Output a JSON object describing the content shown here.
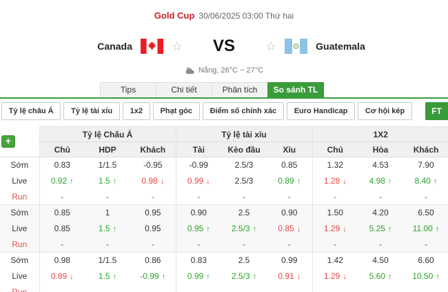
{
  "header": {
    "league": "Gold Cup",
    "kickoff": "30/06/2025 03:00 Thứ hai",
    "home_team": "Canada",
    "away_team": "Guatemala",
    "vs_label": "VS",
    "weather": "Nắng, 26°C ~ 27°C"
  },
  "tabs": [
    {
      "label": "Tips",
      "active": false
    },
    {
      "label": "Chi tiết",
      "active": false
    },
    {
      "label": "Phân tích",
      "active": false
    },
    {
      "label": "So sánh TL",
      "active": true
    }
  ],
  "filters": [
    "Tỷ lệ châu Á",
    "Tỷ lệ tài xỉu",
    "1x2",
    "Phạt góc",
    "Điểm số chính xác",
    "Euro Handicap",
    "Cơ hội kép"
  ],
  "ft_label": "FT",
  "add_button": "+",
  "odds_table": {
    "groups": [
      "Tỷ lệ Châu Á",
      "Tỷ lệ tài xỉu",
      "1X2"
    ],
    "subheaders": [
      "Chủ",
      "HDP",
      "Khách",
      "Tài",
      "Kèo đầu",
      "Xỉu",
      "Chủ",
      "Hòa",
      "Khách"
    ],
    "blocks": [
      {
        "shaded": false,
        "rows": [
          {
            "label": "Sớm",
            "type": "early",
            "cells": [
              {
                "v": "0.83"
              },
              {
                "v": "1/1.5"
              },
              {
                "v": "-0.95"
              },
              {
                "v": "-0.99"
              },
              {
                "v": "2.5/3"
              },
              {
                "v": "0.85"
              },
              {
                "v": "1.32"
              },
              {
                "v": "4.53"
              },
              {
                "v": "7.90"
              }
            ]
          },
          {
            "label": "Live",
            "type": "live",
            "cells": [
              {
                "v": "0.92",
                "t": "up",
                "c": "g"
              },
              {
                "v": "1.5",
                "t": "up",
                "c": "g"
              },
              {
                "v": "0.98",
                "t": "down",
                "c": "r"
              },
              {
                "v": "0.99",
                "t": "down",
                "c": "r"
              },
              {
                "v": "2.5/3"
              },
              {
                "v": "0.89",
                "t": "up",
                "c": "g"
              },
              {
                "v": "1.28",
                "t": "down",
                "c": "r"
              },
              {
                "v": "4.98",
                "t": "up",
                "c": "g"
              },
              {
                "v": "8.40",
                "t": "up",
                "c": "g"
              }
            ]
          },
          {
            "label": "Run",
            "type": "run",
            "cells": [
              {
                "v": "-"
              },
              {
                "v": "-"
              },
              {
                "v": "-"
              },
              {
                "v": "-"
              },
              {
                "v": "-"
              },
              {
                "v": "-"
              },
              {
                "v": "-"
              },
              {
                "v": "-"
              },
              {
                "v": "-"
              }
            ]
          }
        ]
      },
      {
        "shaded": true,
        "rows": [
          {
            "label": "Sớm",
            "type": "early",
            "cells": [
              {
                "v": "0.85"
              },
              {
                "v": "1"
              },
              {
                "v": "0.95"
              },
              {
                "v": "0.90"
              },
              {
                "v": "2.5"
              },
              {
                "v": "0.90"
              },
              {
                "v": "1.50"
              },
              {
                "v": "4.20"
              },
              {
                "v": "6.50"
              }
            ]
          },
          {
            "label": "Live",
            "type": "live",
            "cells": [
              {
                "v": "0.85"
              },
              {
                "v": "1.5",
                "t": "up",
                "c": "g"
              },
              {
                "v": "0.95"
              },
              {
                "v": "0.95",
                "t": "up",
                "c": "g"
              },
              {
                "v": "2.5/3",
                "t": "up",
                "c": "g"
              },
              {
                "v": "0.85",
                "t": "down",
                "c": "r"
              },
              {
                "v": "1.29",
                "t": "down",
                "c": "r"
              },
              {
                "v": "5.25",
                "t": "up",
                "c": "g"
              },
              {
                "v": "11.00",
                "t": "up",
                "c": "g"
              }
            ]
          },
          {
            "label": "Run",
            "type": "run",
            "cells": [
              {
                "v": "-"
              },
              {
                "v": "-"
              },
              {
                "v": "-"
              },
              {
                "v": "-"
              },
              {
                "v": "-"
              },
              {
                "v": "-"
              },
              {
                "v": "-"
              },
              {
                "v": "-"
              },
              {
                "v": "-"
              }
            ]
          }
        ]
      },
      {
        "shaded": false,
        "rows": [
          {
            "label": "Sớm",
            "type": "early",
            "cells": [
              {
                "v": "0.98"
              },
              {
                "v": "1/1.5"
              },
              {
                "v": "0.86"
              },
              {
                "v": "0.83"
              },
              {
                "v": "2.5"
              },
              {
                "v": "0.99"
              },
              {
                "v": "1.42"
              },
              {
                "v": "4.50"
              },
              {
                "v": "6.60"
              }
            ]
          },
          {
            "label": "Live",
            "type": "live",
            "cells": [
              {
                "v": "0.89",
                "t": "down",
                "c": "r"
              },
              {
                "v": "1.5",
                "t": "up",
                "c": "g"
              },
              {
                "v": "-0.99",
                "t": "up",
                "c": "g"
              },
              {
                "v": "0.99",
                "t": "up",
                "c": "g"
              },
              {
                "v": "2.5/3",
                "t": "up",
                "c": "g"
              },
              {
                "v": "0.91",
                "t": "down",
                "c": "r"
              },
              {
                "v": "1.29",
                "t": "down",
                "c": "r"
              },
              {
                "v": "5.60",
                "t": "up",
                "c": "g"
              },
              {
                "v": "10.50",
                "t": "up",
                "c": "g"
              }
            ]
          },
          {
            "label": "Run",
            "type": "run",
            "cells": [
              {
                "v": "-"
              },
              {
                "v": "-"
              },
              {
                "v": "-"
              },
              {
                "v": "-"
              },
              {
                "v": "-"
              },
              {
                "v": "-"
              },
              {
                "v": "-"
              },
              {
                "v": "-"
              },
              {
                "v": "-"
              }
            ]
          }
        ]
      }
    ]
  },
  "colors": {
    "accent_green": "#3a9b3a",
    "league_red": "#cc2127",
    "odds_up_green": "#2aa12a",
    "odds_down_red": "#e84444",
    "canada_red": "#ed1c24",
    "guatemala_blue": "#8cc3e4"
  }
}
